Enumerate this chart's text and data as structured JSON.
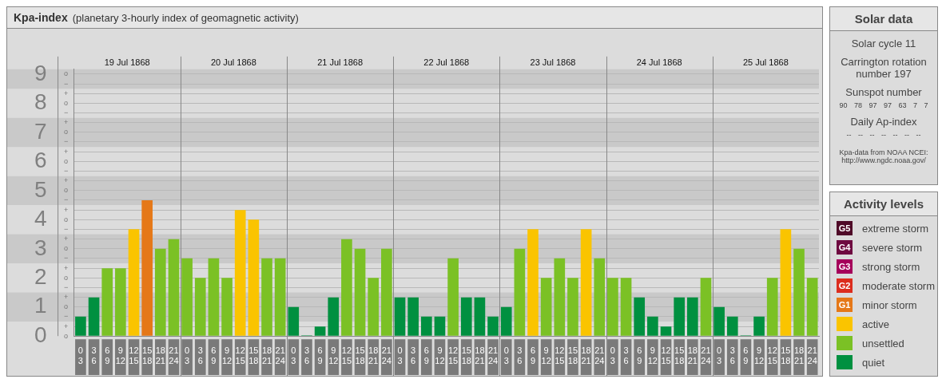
{
  "chart_data": [
    {
      "type": "bar",
      "title": "Kpa-index",
      "subtitle": "(planetary 3-hourly index of geomagnetic activity)",
      "stacked": true,
      "grid": "y",
      "legend": "right",
      "legend_title": "Activity levels",
      "categories": [
        "0\n3",
        "3\n6",
        "6\n9",
        "9\n12",
        "12\n15",
        "15\n18",
        "18\n21",
        "21\n24",
        "0\n3",
        "3\n6",
        "6\n9",
        "9\n12",
        "12\n15",
        "15\n18",
        "18\n21",
        "21\n24",
        "0\n3",
        "3\n6",
        "6\n9",
        "9\n12",
        "12\n15",
        "15\n18",
        "18\n21",
        "21\n24",
        "0\n3",
        "3\n6",
        "6\n9",
        "9\n12",
        "12\n15",
        "15\n18",
        "18\n21",
        "21\n24",
        "0\n3",
        "3\n6",
        "6\n9",
        "9\n12",
        "12\n15",
        "15\n18",
        "18\n21",
        "21\n24",
        "0\n3",
        "3\n6",
        "6\n9",
        "9\n12",
        "12\n15",
        "15\n18",
        "18\n21",
        "21\n24",
        "0\n3",
        "3\n6",
        "6\n9",
        "9\n12",
        "12\n15",
        "15\n18",
        "18\n21",
        "21\n24"
      ],
      "ylim": [
        0,
        9.17
      ],
      "yticks": [
        0,
        {
          "value": 0.33,
          "label": null
        },
        {
          "value": 0.67,
          "label": null
        },
        1,
        {
          "value": 1.33,
          "label": null
        },
        {
          "value": 1.67,
          "label": null
        },
        2,
        {
          "value": 2.33,
          "label": null
        },
        {
          "value": 2.67,
          "label": null
        },
        3,
        {
          "value": 3.33,
          "label": null
        },
        {
          "value": 3.67,
          "label": null
        },
        4,
        {
          "value": 4.33,
          "label": null
        },
        {
          "value": 4.67,
          "label": null
        },
        5,
        {
          "value": 5.33,
          "label": null
        },
        {
          "value": 5.67,
          "label": null
        },
        6,
        {
          "value": 6.33,
          "label": null
        },
        {
          "value": 6.67,
          "label": null
        },
        7,
        {
          "value": 7.33,
          "label": null
        },
        {
          "value": 7.67,
          "label": null
        },
        8,
        {
          "value": 8.33,
          "label": null
        },
        {
          "value": 8.67,
          "label": null
        },
        9
      ],
      "annotations": [
        "19 Jul 1868",
        "20 Jul 1868",
        "21 Jul 1868",
        "22 Jul 1868",
        "23 Jul 1868",
        "24 Jul 1868",
        "25 Jul 1868",
        "o",
        "+",
        "−",
        "o",
        "+",
        "−",
        "o",
        "+",
        "−",
        "o",
        "+",
        "−",
        "o",
        "+",
        "−",
        "o",
        "+",
        "−",
        "o",
        "+",
        "−",
        "o",
        "+",
        "−",
        "o",
        "+",
        "−",
        "o"
      ],
      "bands": [
        {
          "axis": "y",
          "from": 0.5,
          "to": 1.5,
          "color": "#c9c9c9"
        },
        {
          "axis": "y",
          "from": 2.5,
          "to": 3.5,
          "color": "#c9c9c9"
        },
        {
          "axis": "y",
          "from": 4.5,
          "to": 5.5,
          "color": "#c9c9c9"
        },
        {
          "axis": "y",
          "from": 6.5,
          "to": 7.5,
          "color": "#c9c9c9"
        },
        {
          "axis": "y",
          "from": 8.5,
          "to": 9.17,
          "color": "#c9c9c9"
        }
      ],
      "series": [
        {
          "name": "G5 extreme storm",
          "color": "#4f0a28",
          "values": [
            null,
            null,
            null,
            null,
            null,
            null,
            null,
            null,
            null,
            null,
            null,
            null,
            null,
            null,
            null,
            null,
            null,
            null,
            null,
            null,
            null,
            null,
            null,
            null,
            null,
            null,
            null,
            null,
            null,
            null,
            null,
            null,
            null,
            null,
            null,
            null,
            null,
            null,
            null,
            null,
            null,
            null,
            null,
            null,
            null,
            null,
            null,
            null,
            null,
            null,
            null,
            null,
            null,
            null,
            null,
            null
          ]
        },
        {
          "name": "G4 severe storm",
          "color": "#6e0a40",
          "values": [
            null,
            null,
            null,
            null,
            null,
            null,
            null,
            null,
            null,
            null,
            null,
            null,
            null,
            null,
            null,
            null,
            null,
            null,
            null,
            null,
            null,
            null,
            null,
            null,
            null,
            null,
            null,
            null,
            null,
            null,
            null,
            null,
            null,
            null,
            null,
            null,
            null,
            null,
            null,
            null,
            null,
            null,
            null,
            null,
            null,
            null,
            null,
            null,
            null,
            null,
            null,
            null,
            null,
            null,
            null,
            null
          ]
        },
        {
          "name": "G3 strong storm",
          "color": "#a5005a",
          "values": [
            null,
            null,
            null,
            null,
            null,
            null,
            null,
            null,
            null,
            null,
            null,
            null,
            null,
            null,
            null,
            null,
            null,
            null,
            null,
            null,
            null,
            null,
            null,
            null,
            null,
            null,
            null,
            null,
            null,
            null,
            null,
            null,
            null,
            null,
            null,
            null,
            null,
            null,
            null,
            null,
            null,
            null,
            null,
            null,
            null,
            null,
            null,
            null,
            null,
            null,
            null,
            null,
            null,
            null,
            null,
            null
          ]
        },
        {
          "name": "G2 moderate storm",
          "color": "#dc2d1e",
          "values": [
            null,
            null,
            null,
            null,
            null,
            null,
            null,
            null,
            null,
            null,
            null,
            null,
            null,
            null,
            null,
            null,
            null,
            null,
            null,
            null,
            null,
            null,
            null,
            null,
            null,
            null,
            null,
            null,
            null,
            null,
            null,
            null,
            null,
            null,
            null,
            null,
            null,
            null,
            null,
            null,
            null,
            null,
            null,
            null,
            null,
            null,
            null,
            null,
            null,
            null,
            null,
            null,
            null,
            null,
            null,
            null
          ]
        },
        {
          "name": "G1 minor storm",
          "color": "#e57818",
          "values": [
            null,
            null,
            null,
            null,
            null,
            4.67,
            null,
            null,
            null,
            null,
            null,
            null,
            null,
            null,
            null,
            null,
            null,
            null,
            null,
            null,
            null,
            null,
            null,
            null,
            null,
            null,
            null,
            null,
            null,
            null,
            null,
            null,
            null,
            null,
            null,
            null,
            null,
            null,
            null,
            null,
            null,
            null,
            null,
            null,
            null,
            null,
            null,
            null,
            null,
            null,
            null,
            null,
            null,
            null,
            null,
            null
          ]
        },
        {
          "name": "active",
          "color": "#fac400",
          "values": [
            null,
            null,
            null,
            null,
            3.67,
            null,
            null,
            null,
            null,
            null,
            null,
            null,
            4.33,
            4,
            null,
            null,
            null,
            null,
            null,
            null,
            null,
            null,
            null,
            null,
            null,
            null,
            null,
            null,
            null,
            null,
            null,
            null,
            null,
            null,
            3.67,
            null,
            null,
            null,
            3.67,
            null,
            null,
            null,
            null,
            null,
            null,
            null,
            null,
            null,
            null,
            null,
            null,
            null,
            null,
            3.67,
            null,
            null
          ]
        },
        {
          "name": "unsettled",
          "color": "#7bc125",
          "values": [
            null,
            null,
            2.33,
            2.33,
            null,
            null,
            3,
            3.33,
            2.67,
            2,
            2.67,
            2,
            null,
            null,
            2.67,
            2.67,
            null,
            null,
            null,
            null,
            3.33,
            3,
            2,
            3,
            null,
            null,
            null,
            null,
            2.67,
            null,
            null,
            null,
            null,
            3,
            null,
            2,
            2.67,
            2,
            null,
            2.67,
            2,
            2,
            null,
            null,
            null,
            null,
            null,
            2,
            null,
            null,
            null,
            null,
            2,
            null,
            3,
            2
          ]
        },
        {
          "name": "quiet",
          "color": "#009040",
          "values": [
            0.67,
            1.33,
            null,
            null,
            null,
            null,
            null,
            null,
            null,
            null,
            null,
            null,
            null,
            null,
            null,
            null,
            1,
            0,
            0.33,
            1.33,
            null,
            null,
            null,
            null,
            1.33,
            1.33,
            0.67,
            0.67,
            null,
            1.33,
            1.33,
            0.67,
            1,
            null,
            null,
            null,
            null,
            null,
            null,
            null,
            null,
            null,
            1.33,
            0.67,
            0.33,
            1.33,
            1.33,
            null,
            1,
            0.67,
            0,
            0.67,
            null,
            null,
            null,
            null
          ]
        }
      ]
    },
    {
      "type": "other",
      "title": "Solar data",
      "annotations": [
        "Solar cycle 11",
        "Carrington rotation number 197",
        "Sunspot number",
        "90 78 97 97 63 7 7",
        "Daily Ap-index",
        "-- -- -- -- -- -- --",
        "Kpa-data from NOAA NCEI: http://www.ngdc.noaa.gov/"
      ]
    }
  ]
}
